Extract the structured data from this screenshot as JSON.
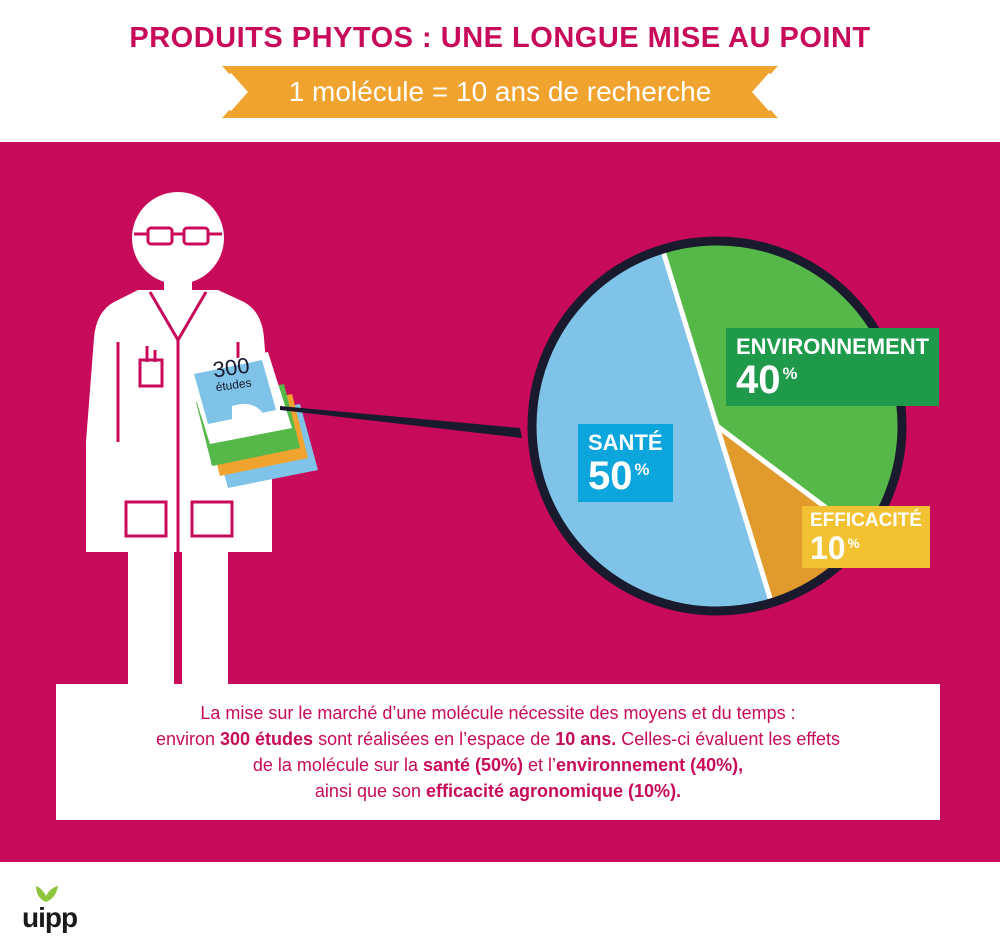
{
  "header": {
    "title": "PRODUITS PHYTOS : UNE LONGUE MISE AU POINT",
    "ribbon": "1 molécule = 10 ans de recherche"
  },
  "illustration": {
    "folder_number": "300",
    "folder_word": "études"
  },
  "chart_data": {
    "type": "pie",
    "slices": [
      {
        "name": "ENVIRONNEMENT",
        "value": 40,
        "display": "40",
        "color": "#57b84a"
      },
      {
        "name": "EFFICACITÉ",
        "value": 10,
        "display": "10",
        "color": "#e19a2c"
      },
      {
        "name": "SANTÉ",
        "value": 50,
        "display": "50",
        "color": "#7fc4e8"
      }
    ],
    "percent_sign": "%"
  },
  "description": {
    "line1": "La mise sur le marché d’une molécule nécessite des moyens et du temps :",
    "line2_a": "environ ",
    "line2_b": "300 études",
    "line2_c": " sont réalisées en l’espace de ",
    "line2_d": "10 ans.",
    "line2_e": " Celles-ci évaluent les effets",
    "line3_a": "de la molécule sur la ",
    "line3_b": "santé (50%)",
    "line3_c": " et l’",
    "line3_d": "environnement (40%),",
    "line4_a": "ainsi que son ",
    "line4_b": "efficacité agronomique (10%)."
  },
  "logo": {
    "text": "uipp"
  },
  "colors": {
    "magenta": "#c80a5a",
    "ribbon": "#f0a32e",
    "env_label": "#1f9a4a",
    "sante_label": "#0ca5dc",
    "eff_label": "#f2c233"
  }
}
